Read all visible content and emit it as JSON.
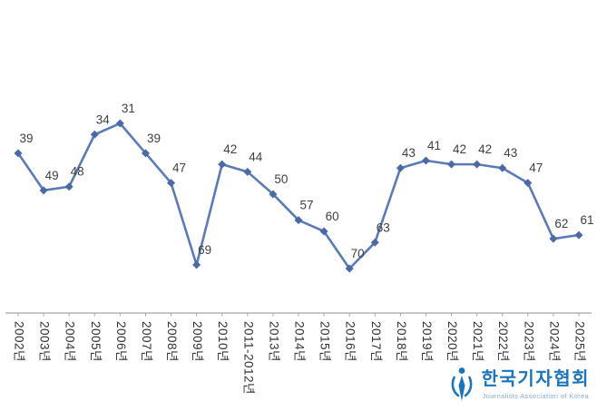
{
  "chart_data": {
    "type": "line",
    "categories": [
      "2002년",
      "2003년",
      "2004년",
      "2005년",
      "2006년",
      "2007년",
      "2008년",
      "2009년",
      "2010년",
      "2011-2012년",
      "2013년",
      "2014년",
      "2015년",
      "2016년",
      "2017년",
      "2018년",
      "2019년",
      "2020년",
      "2021년",
      "2022년",
      "2023년",
      "2024년",
      "2025년"
    ],
    "values": [
      39,
      49,
      48,
      34,
      31,
      39,
      47,
      69,
      42,
      44,
      50,
      57,
      60,
      70,
      63,
      43,
      41,
      42,
      42,
      43,
      47,
      62,
      61
    ],
    "title": "",
    "xlabel": "",
    "ylabel": "",
    "y_axis": {
      "inverted": true,
      "min": 31,
      "max": 70,
      "visible": false
    },
    "grid": false,
    "legend": "none",
    "marker": "diamond",
    "line_color": "#5b7ab8",
    "marker_color": "#4a69a5",
    "data_label_color": "#404040",
    "tick_label_color": "#333333",
    "axis_line_color": "#a6a6a6"
  },
  "logo": {
    "icon": "kja-emblem-icon",
    "korean": "한국기자협회",
    "english": "Journalists Association of Korea",
    "color": "#1b75bc",
    "sub_color": "#85abd3"
  }
}
